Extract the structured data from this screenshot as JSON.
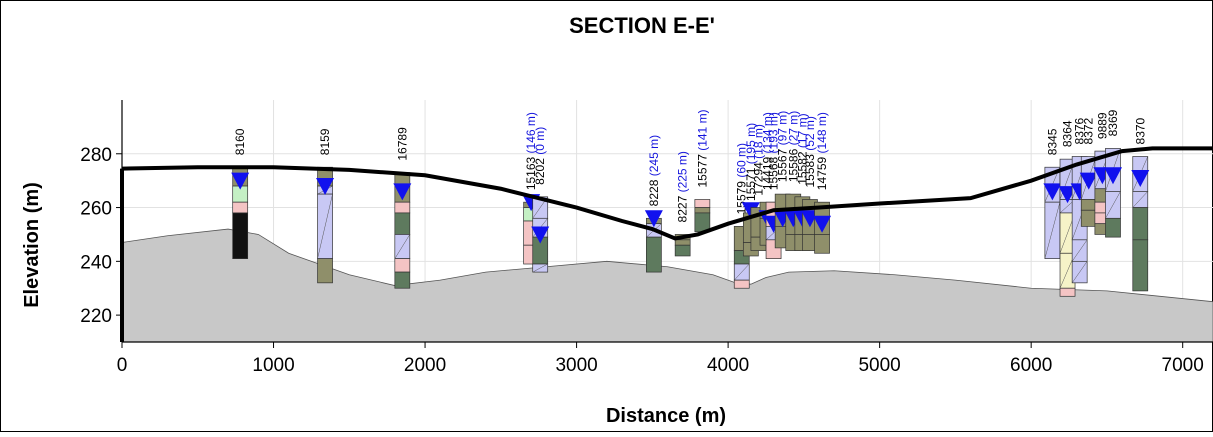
{
  "title": "SECTION E-E'",
  "xlabel": "Distance (m)",
  "ylabel": "Elevation (m)",
  "chart_data": {
    "type": "cross-section",
    "title": "SECTION E-E'",
    "xlabel": "Distance (m)",
    "ylabel": "Elevation (m)",
    "xlim": [
      0,
      7200
    ],
    "ylim": [
      210,
      300
    ],
    "x_ticks": [
      0,
      1000,
      2000,
      3000,
      4000,
      5000,
      6000,
      7000
    ],
    "y_ticks": [
      220,
      240,
      260,
      280
    ],
    "ground_surface": [
      [
        0,
        274.5
      ],
      [
        500,
        275
      ],
      [
        1000,
        275
      ],
      [
        1500,
        274
      ],
      [
        2000,
        272
      ],
      [
        2500,
        267
      ],
      [
        3000,
        260
      ],
      [
        3300,
        255
      ],
      [
        3500,
        252
      ],
      [
        3650,
        248.5
      ],
      [
        3800,
        250
      ],
      [
        4000,
        254
      ],
      [
        4300,
        259
      ],
      [
        4600,
        260
      ],
      [
        5000,
        261.5
      ],
      [
        5600,
        263.5
      ],
      [
        6000,
        270
      ],
      [
        6300,
        276
      ],
      [
        6600,
        281
      ],
      [
        6800,
        282
      ],
      [
        7200,
        282
      ]
    ],
    "bedrock_surface": [
      [
        0,
        247
      ],
      [
        300,
        249.5
      ],
      [
        700,
        252
      ],
      [
        900,
        250
      ],
      [
        1100,
        243
      ],
      [
        1500,
        235
      ],
      [
        1800,
        231
      ],
      [
        2100,
        233
      ],
      [
        2400,
        236
      ],
      [
        2800,
        238
      ],
      [
        3200,
        240
      ],
      [
        3600,
        238
      ],
      [
        3900,
        235
      ],
      [
        4050,
        232
      ],
      [
        4150,
        231.5
      ],
      [
        4250,
        234
      ],
      [
        4400,
        236
      ],
      [
        4700,
        236.5
      ],
      [
        5100,
        235
      ],
      [
        5500,
        233
      ],
      [
        6000,
        230
      ],
      [
        6500,
        229
      ],
      [
        7200,
        225
      ]
    ],
    "boreholes": [
      {
        "id": "8160",
        "x": 780,
        "top": 275,
        "bottom": 241,
        "water": 270,
        "layers": [
          [
            275,
            268,
            "silt"
          ],
          [
            268,
            262,
            "green"
          ],
          [
            262,
            258,
            "pink"
          ],
          [
            258,
            241,
            "black"
          ]
        ]
      },
      {
        "id": "8159",
        "x": 1340,
        "top": 275,
        "bottom": 232,
        "water": 268,
        "layers": [
          [
            275,
            268,
            "silt"
          ],
          [
            268,
            265,
            "blue"
          ],
          [
            265,
            241,
            "blue"
          ],
          [
            241,
            232,
            "silt"
          ]
        ]
      },
      {
        "id": "16789",
        "x": 1850,
        "top": 273,
        "bottom": 230,
        "water": 266,
        "layers": [
          [
            273,
            262,
            "silt"
          ],
          [
            262,
            258,
            "pink"
          ],
          [
            258,
            250,
            "dkgreen"
          ],
          [
            250,
            241,
            "blue"
          ],
          [
            241,
            236,
            "pink"
          ],
          [
            236,
            230,
            "dkgreen"
          ]
        ]
      },
      {
        "id": "15163 (146 m)",
        "x": 2700,
        "top": 262,
        "bottom": 239,
        "water": 262,
        "layers": [
          [
            262,
            260,
            "silt"
          ],
          [
            260,
            255,
            "green"
          ],
          [
            255,
            246,
            "pink"
          ],
          [
            246,
            239,
            "pink"
          ]
        ]
      },
      {
        "id": "8202 (0 m)",
        "x": 2760,
        "top": 264,
        "bottom": 236,
        "water": 250,
        "layers": [
          [
            264,
            256,
            "blue"
          ],
          [
            256,
            249,
            "blue"
          ],
          [
            249,
            239,
            "dkgreen"
          ],
          [
            239,
            236,
            "blue"
          ]
        ]
      },
      {
        "id": "8228 (245 m)",
        "x": 3510,
        "top": 256,
        "bottom": 236,
        "water": 256,
        "layers": [
          [
            256,
            254,
            "silt"
          ],
          [
            254,
            249,
            "blue"
          ],
          [
            249,
            236,
            "dkgreen"
          ]
        ]
      },
      {
        "id": "8227 (225 m)",
        "x": 3700,
        "top": 250,
        "bottom": 242,
        "water": null,
        "layers": [
          [
            250,
            248,
            "silt"
          ],
          [
            248,
            246,
            "silt"
          ],
          [
            246,
            242,
            "dkgreen"
          ]
        ]
      },
      {
        "id": "15577 (141 m)",
        "x": 3830,
        "top": 263,
        "bottom": 251,
        "water": null,
        "layers": [
          [
            263,
            260,
            "pink"
          ],
          [
            260,
            258,
            "silt"
          ],
          [
            258,
            251,
            "dkgreen"
          ]
        ]
      },
      {
        "id": "15579 (60 m)",
        "x": 4090,
        "top": 253,
        "bottom": 230,
        "water": null,
        "layers": [
          [
            253,
            244,
            "silt"
          ],
          [
            244,
            239,
            "dkgreen"
          ],
          [
            239,
            233,
            "blue"
          ],
          [
            233,
            230,
            "pink"
          ]
        ]
      },
      {
        "id": "15571 (195 m)",
        "x": 4150,
        "top": 258,
        "bottom": 242,
        "water": 259,
        "layers": [
          [
            258,
            247,
            "silt"
          ],
          [
            247,
            242,
            "silt"
          ]
        ]
      },
      {
        "id": "17294 (18 m)",
        "x": 4200,
        "top": 260,
        "bottom": 244,
        "water": null,
        "layers": [
          [
            260,
            249,
            "silt"
          ],
          [
            249,
            244,
            "silt"
          ]
        ]
      },
      {
        "id": "14419 (134 m)",
        "x": 4260,
        "top": 262,
        "bottom": 246,
        "water": 256,
        "layers": [
          [
            262,
            256,
            "silt"
          ],
          [
            256,
            246,
            "silt"
          ]
        ]
      },
      {
        "id": "15568 (193 m)",
        "x": 4300,
        "top": 262,
        "bottom": 241,
        "water": 254,
        "layers": [
          [
            262,
            253,
            "pink"
          ],
          [
            253,
            248,
            "blue"
          ],
          [
            248,
            241,
            "pink"
          ]
        ]
      },
      {
        "id": "15567 (97 m)",
        "x": 4360,
        "top": 265,
        "bottom": 245,
        "water": 256,
        "layers": [
          [
            265,
            253,
            "silt"
          ],
          [
            253,
            245,
            "silt"
          ]
        ]
      },
      {
        "id": "15586 (27 m)",
        "x": 4430,
        "top": 265,
        "bottom": 244,
        "water": 256,
        "layers": [
          [
            265,
            250,
            "silt"
          ],
          [
            250,
            244,
            "silt"
          ]
        ]
      },
      {
        "id": "15582 (17 m)",
        "x": 4490,
        "top": 264,
        "bottom": 244,
        "water": 256,
        "layers": [
          [
            264,
            250,
            "silt"
          ],
          [
            250,
            244,
            "silt"
          ]
        ]
      },
      {
        "id": "15583 (52 m)",
        "x": 4540,
        "top": 263,
        "bottom": 244,
        "water": 256,
        "layers": [
          [
            263,
            250,
            "silt"
          ],
          [
            250,
            244,
            "silt"
          ]
        ]
      },
      {
        "id": "14759 (148 m)",
        "x": 4620,
        "top": 262,
        "bottom": 243,
        "water": 254,
        "layers": [
          [
            262,
            250,
            "silt"
          ],
          [
            250,
            243,
            "silt"
          ]
        ]
      },
      {
        "id": "8345",
        "x": 6140,
        "top": 275,
        "bottom": 241,
        "water": 266,
        "layers": [
          [
            275,
            262,
            "blue"
          ],
          [
            262,
            241,
            "blue"
          ]
        ]
      },
      {
        "id": "8364",
        "x": 6240,
        "top": 278,
        "bottom": 227,
        "water": 265,
        "layers": [
          [
            278,
            263,
            "blue"
          ],
          [
            263,
            258,
            "blue"
          ],
          [
            258,
            243,
            "cream"
          ],
          [
            243,
            230,
            "cream"
          ],
          [
            230,
            227,
            "pink"
          ]
        ]
      },
      {
        "id": "8376",
        "x": 6320,
        "top": 279,
        "bottom": 232,
        "water": 266,
        "layers": [
          [
            279,
            263,
            "blue"
          ],
          [
            263,
            248,
            "blue"
          ],
          [
            248,
            240,
            "blue"
          ],
          [
            240,
            232,
            "blue"
          ]
        ]
      },
      {
        "id": "8372",
        "x": 6380,
        "top": 279,
        "bottom": 253,
        "water": 270,
        "layers": [
          [
            279,
            263,
            "blue"
          ],
          [
            263,
            259,
            "silt"
          ],
          [
            259,
            253,
            "silt"
          ]
        ]
      },
      {
        "id": "9889",
        "x": 6470,
        "top": 281,
        "bottom": 250,
        "water": 272,
        "layers": [
          [
            281,
            267,
            "blue"
          ],
          [
            267,
            262,
            "silt"
          ],
          [
            262,
            258,
            "pink"
          ],
          [
            258,
            254,
            "pink"
          ],
          [
            254,
            250,
            "silt"
          ]
        ]
      },
      {
        "id": "8369",
        "x": 6540,
        "top": 282,
        "bottom": 249,
        "water": 272,
        "layers": [
          [
            282,
            266,
            "blue"
          ],
          [
            266,
            256,
            "blue"
          ],
          [
            256,
            249,
            "dkgreen"
          ]
        ]
      },
      {
        "id": "8370",
        "x": 6720,
        "top": 279,
        "bottom": 229,
        "water": 271,
        "layers": [
          [
            279,
            266,
            "blue"
          ],
          [
            266,
            260,
            "blue"
          ],
          [
            260,
            248,
            "dkgreen"
          ],
          [
            248,
            229,
            "dkgreen"
          ]
        ]
      }
    ]
  },
  "colors": {
    "silt": "#8f8f6a",
    "dkgreen": "#5e7a5e",
    "blue": "#c8c8f4",
    "pink": "#f4c4c4",
    "green": "#c4f0c4",
    "black": "#111111",
    "cream": "#f6f3c8",
    "bedrock": "#c8c8c8",
    "water": "#1111ee",
    "label_blue": "#1414dd"
  }
}
